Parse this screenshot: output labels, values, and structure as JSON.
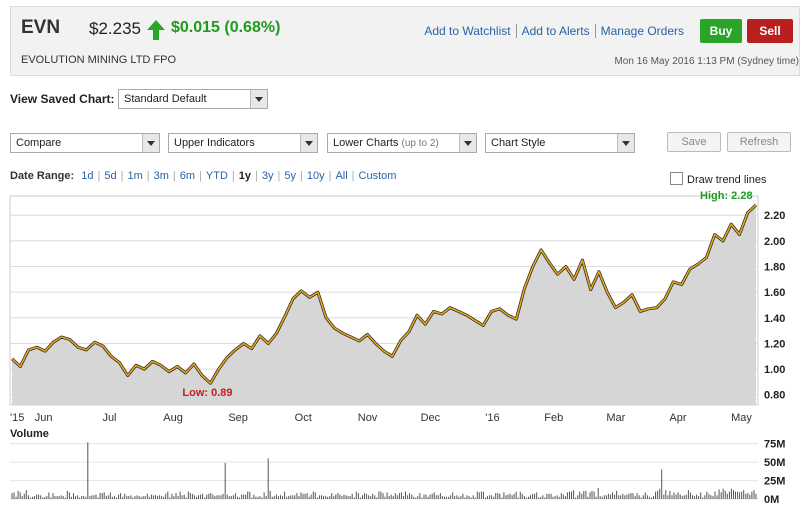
{
  "header": {
    "ticker": "EVN",
    "price": "$2.235",
    "change": "$0.015 (0.68%)",
    "company": "EVOLUTION MINING LTD FPO",
    "datetime": "Mon 16 May 2016 1:13 PM (Sydney time)",
    "links": [
      "Add to Watchlist",
      "Add to Alerts",
      "Manage Orders"
    ],
    "buy_label": "Buy",
    "sell_label": "Sell",
    "up_color": "#1f9a1f",
    "buy_color": "#28a528",
    "sell_color": "#b82020"
  },
  "saved_chart": {
    "label": "View Saved Chart:",
    "value": "Standard Default"
  },
  "toolbar": {
    "compare": "Compare",
    "upper": "Upper Indicators",
    "lower": "Lower Charts",
    "lower_hint": "(up to 2)",
    "style": "Chart Style",
    "save": "Save",
    "refresh": "Refresh"
  },
  "date_range": {
    "label": "Date Range:",
    "options": [
      "1d",
      "5d",
      "1m",
      "3m",
      "6m",
      "YTD",
      "1y",
      "3y",
      "5y",
      "10y",
      "All",
      "Custom"
    ],
    "selected": "1y",
    "trend_label": "Draw trend lines"
  },
  "chart_data": {
    "type": "area",
    "x_ticks": [
      "'15",
      "Jun",
      "Jul",
      "Aug",
      "Sep",
      "Oct",
      "Nov",
      "Dec",
      "'16",
      "Feb",
      "Mar",
      "Apr",
      "May"
    ],
    "y_ticks": [
      "2.20",
      "2.00",
      "1.80",
      "1.60",
      "1.40",
      "1.20",
      "1.00",
      "0.80"
    ],
    "ylim": [
      0.72,
      2.35
    ],
    "high_label": "High: 2.28",
    "low_label": "Low: 0.89",
    "line_color": "#e6a81e",
    "fill_color": "#d6d6d6",
    "series": [
      1.08,
      1.02,
      1.15,
      1.17,
      1.14,
      1.21,
      1.25,
      1.23,
      1.17,
      1.15,
      1.21,
      1.18,
      1.1,
      1.05,
      0.95,
      1.03,
      1.0,
      1.06,
      1.03,
      0.98,
      1.02,
      0.97,
      1.04,
      0.95,
      0.89,
      1.0,
      1.09,
      1.15,
      1.2,
      1.16,
      1.26,
      1.2,
      1.28,
      1.41,
      1.55,
      1.61,
      1.56,
      1.6,
      1.4,
      1.32,
      1.28,
      1.25,
      1.22,
      1.27,
      1.2,
      1.14,
      1.1,
      1.22,
      1.29,
      1.42,
      1.35,
      1.45,
      1.43,
      1.48,
      1.45,
      1.42,
      1.38,
      1.34,
      1.45,
      1.47,
      1.42,
      1.39,
      1.63,
      1.8,
      1.93,
      1.83,
      1.74,
      1.8,
      1.7,
      1.85,
      1.62,
      1.76,
      1.6,
      1.48,
      1.52,
      1.58,
      1.45,
      1.47,
      1.48,
      1.55,
      1.68,
      1.66,
      1.78,
      1.82,
      1.87,
      2.05,
      2.0,
      2.13,
      2.05,
      2.22,
      2.28
    ],
    "volume_label": "Volume",
    "volume_ticks": [
      "75M",
      "50M",
      "25M",
      "0M"
    ],
    "volume_ylim": [
      0,
      80
    ],
    "volume": [
      8,
      9,
      3,
      11,
      9,
      4,
      7,
      12,
      5,
      2,
      3,
      4,
      6,
      6,
      5,
      2,
      3,
      4,
      9,
      2,
      8,
      4,
      4,
      4,
      5,
      4,
      2,
      11,
      9,
      3,
      8,
      4,
      5,
      2,
      4,
      4,
      3,
      77,
      4,
      5,
      5,
      6,
      2,
      8,
      8,
      9,
      4,
      5,
      9,
      3,
      4,
      2,
      6,
      8,
      3,
      7,
      4,
      4,
      5,
      2,
      4,
      5,
      4,
      3,
      4,
      4,
      7,
      3,
      6,
      5,
      5,
      4,
      5,
      4,
      3,
      7,
      10,
      2,
      7,
      4,
      8,
      4,
      10,
      5,
      6,
      2,
      10,
      8,
      7,
      5,
      3,
      5,
      6,
      7,
      2,
      6,
      7,
      8,
      6,
      4,
      5,
      5,
      5,
      7,
      49,
      6,
      4,
      4,
      5,
      8,
      3,
      2,
      6,
      6,
      6,
      10,
      10,
      2,
      6,
      3,
      3,
      4,
      2,
      9,
      4,
      55,
      11,
      3,
      4,
      6,
      4,
      5,
      4,
      10,
      3,
      4,
      5,
      5,
      5,
      8,
      4,
      9,
      7,
      7,
      8,
      3,
      6,
      10,
      9,
      2,
      5,
      5,
      4,
      4,
      3,
      4,
      8,
      4,
      6,
      8,
      6,
      4,
      6,
      5,
      4,
      4,
      7,
      2,
      10,
      8,
      2,
      5,
      8,
      7,
      5,
      4,
      7,
      5,
      2,
      10,
      10,
      8,
      3,
      9,
      4,
      6,
      4,
      8,
      5,
      8,
      9,
      4,
      10,
      5,
      8,
      6,
      3,
      2,
      4,
      8,
      2,
      6,
      6,
      3,
      6,
      7,
      9,
      5,
      5,
      8,
      4,
      3,
      3,
      3,
      5,
      9,
      4,
      5,
      3,
      4,
      7,
      2,
      5,
      4,
      2,
      5,
      2,
      10,
      9,
      10,
      10,
      2,
      4,
      5,
      5,
      3,
      8,
      8,
      7,
      2,
      9,
      5,
      6,
      7,
      5,
      7,
      10,
      2,
      10,
      7,
      4,
      2,
      3,
      5,
      7,
      7,
      9,
      2,
      3,
      5,
      2,
      7,
      7,
      7,
      3,
      4,
      5,
      3,
      8,
      6,
      4,
      9,
      10,
      10,
      12,
      2,
      5,
      10,
      7,
      11,
      11,
      3,
      9,
      11,
      10,
      3,
      15,
      4,
      3,
      5,
      5,
      7,
      6,
      9,
      6,
      11,
      5,
      5,
      7,
      5,
      6,
      7,
      8,
      8,
      4,
      8,
      5,
      2,
      5,
      9,
      5,
      3,
      2,
      4,
      10,
      11,
      14,
      40,
      6,
      12,
      5,
      11,
      5,
      9,
      6,
      9,
      6,
      4,
      5,
      6,
      12,
      9,
      5,
      4,
      6,
      4,
      9,
      2,
      5,
      10,
      7,
      5,
      4,
      10,
      5,
      13,
      9,
      14,
      11,
      7,
      10,
      14,
      12,
      10,
      10,
      9,
      10,
      12,
      7,
      8,
      6,
      10,
      12,
      7
    ]
  }
}
